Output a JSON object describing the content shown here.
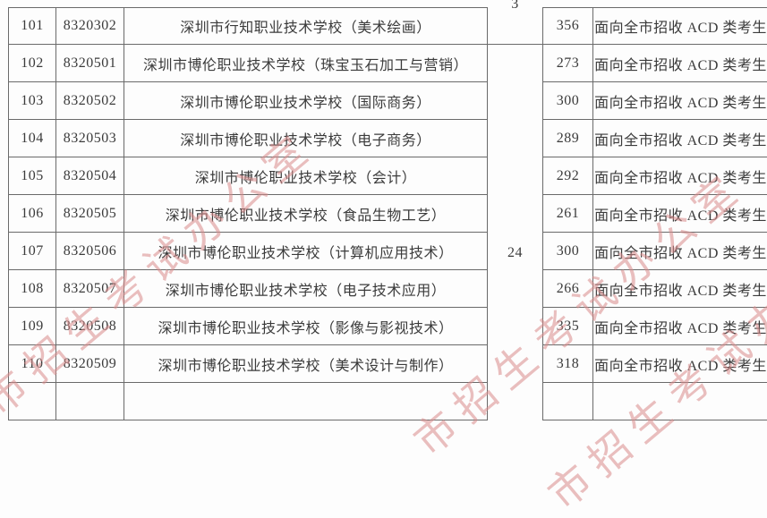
{
  "colors": {
    "border": "#6a6a6a",
    "text": "#3b3b3b",
    "watermark": "#d98b8b",
    "background": "#fdfdfd"
  },
  "watermark": {
    "text": "市招生考试办公室"
  },
  "table": {
    "merged": {
      "partial_top_value": "3",
      "group_value": "24"
    },
    "rows": [
      {
        "no": "101",
        "code": "8320302",
        "school": "深圳市行知职业技术学校（美术绘画）",
        "count": "356",
        "scope": "面向全市招收 ACD 类考生"
      },
      {
        "no": "102",
        "code": "8320501",
        "school": "深圳市博伦职业技术学校（珠宝玉石加工与营销）",
        "count": "273",
        "scope": "面向全市招收 ACD 类考生"
      },
      {
        "no": "103",
        "code": "8320502",
        "school": "深圳市博伦职业技术学校（国际商务）",
        "count": "300",
        "scope": "面向全市招收 ACD 类考生"
      },
      {
        "no": "104",
        "code": "8320503",
        "school": "深圳市博伦职业技术学校（电子商务）",
        "count": "289",
        "scope": "面向全市招收 ACD 类考生"
      },
      {
        "no": "105",
        "code": "8320504",
        "school": "深圳市博伦职业技术学校（会计）",
        "count": "292",
        "scope": "面向全市招收 ACD 类考生"
      },
      {
        "no": "106",
        "code": "8320505",
        "school": "深圳市博伦职业技术学校（食品生物工艺）",
        "count": "261",
        "scope": "面向全市招收 ACD 类考生"
      },
      {
        "no": "107",
        "code": "8320506",
        "school": "深圳市博伦职业技术学校（计算机应用技术）",
        "count": "300",
        "scope": "面向全市招收 ACD 类考生"
      },
      {
        "no": "108",
        "code": "8320507",
        "school": "深圳市博伦职业技术学校（电子技术应用）",
        "count": "266",
        "scope": "面向全市招收 ACD 类考生"
      },
      {
        "no": "109",
        "code": "8320508",
        "school": "深圳市博伦职业技术学校（影像与影视技术）",
        "count": "335",
        "scope": "面向全市招收 ACD 类考生"
      },
      {
        "no": "110",
        "code": "8320509",
        "school": "深圳市博伦职业技术学校（美术设计与制作）",
        "count": "318",
        "scope": "面向全市招收 ACD 类考生"
      }
    ]
  }
}
